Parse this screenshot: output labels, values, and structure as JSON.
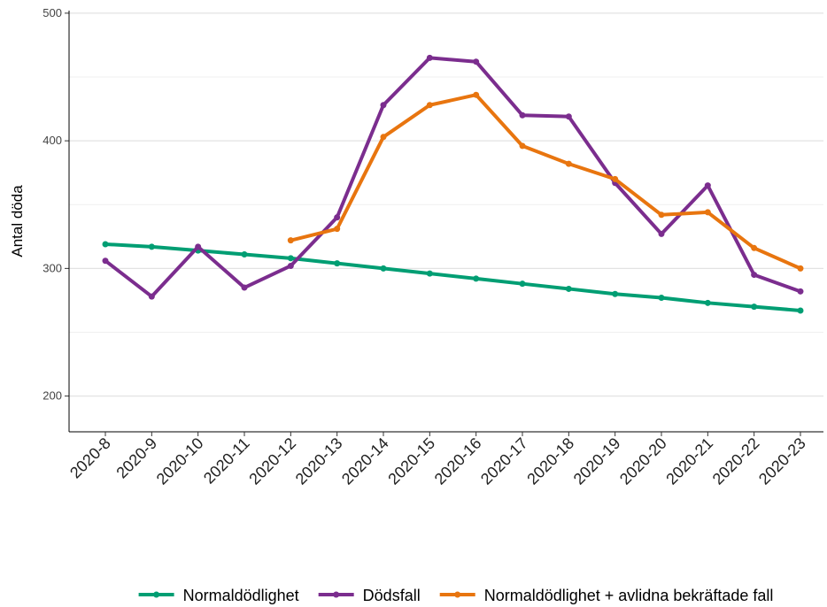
{
  "chart_data": {
    "type": "line",
    "y_label": "Antal döda",
    "categories": [
      "2020-8",
      "2020-9",
      "2020-10",
      "2020-11",
      "2020-12",
      "2020-13",
      "2020-14",
      "2020-15",
      "2020-16",
      "2020-17",
      "2020-18",
      "2020-19",
      "2020-20",
      "2020-21",
      "2020-22",
      "2020-23"
    ],
    "series": [
      {
        "name": "Normaldödlighet",
        "color": "#009E73",
        "values": [
          319,
          317,
          314,
          311,
          308,
          304,
          300,
          296,
          292,
          288,
          284,
          280,
          277,
          273,
          270,
          267
        ]
      },
      {
        "name": "Dödsfall",
        "color": "#7B2D8E",
        "values": [
          306,
          278,
          317,
          285,
          302,
          340,
          428,
          465,
          462,
          420,
          419,
          367,
          327,
          365,
          295,
          282
        ]
      },
      {
        "name": "Normaldödlighet + avlidna bekräftade fall",
        "color": "#E8750F",
        "values": [
          null,
          null,
          null,
          null,
          322,
          331,
          403,
          428,
          436,
          396,
          382,
          370,
          342,
          344,
          316,
          300
        ]
      }
    ],
    "ylim": [
      172,
      502
    ],
    "yticks": [
      200,
      300,
      400,
      500
    ],
    "y_minor_ticks": [
      250,
      350,
      450
    ],
    "grid": true,
    "legend": "bottom"
  }
}
